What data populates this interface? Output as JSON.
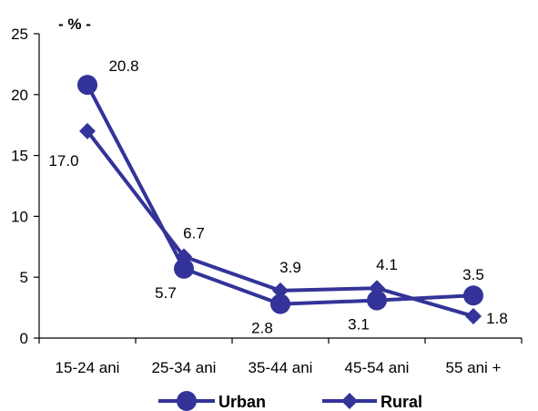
{
  "chart_data": {
    "type": "line",
    "ylabel": "- % -",
    "xlabel": "",
    "categories": [
      "15-24 ani",
      "25-34 ani",
      "35-44 ani",
      "45-54 ani",
      "55 ani +"
    ],
    "ylim": [
      0,
      25
    ],
    "yticks": [
      "0",
      "5",
      "10",
      "15",
      "20",
      "25"
    ],
    "grid": false,
    "legend_position": "bottom",
    "series": [
      {
        "name": "Urban",
        "marker": "circle",
        "color": "#333399",
        "values": [
          20.8,
          5.7,
          2.8,
          3.1,
          3.5
        ],
        "labels": [
          "20.8",
          "5.7",
          "2.8",
          "3.1",
          "3.5"
        ]
      },
      {
        "name": "Rural",
        "marker": "diamond",
        "color": "#333399",
        "values": [
          17.0,
          6.7,
          3.9,
          4.1,
          1.8
        ],
        "labels": [
          "17.0",
          "6.7",
          "3.9",
          "4.1",
          "1.8"
        ]
      }
    ]
  }
}
